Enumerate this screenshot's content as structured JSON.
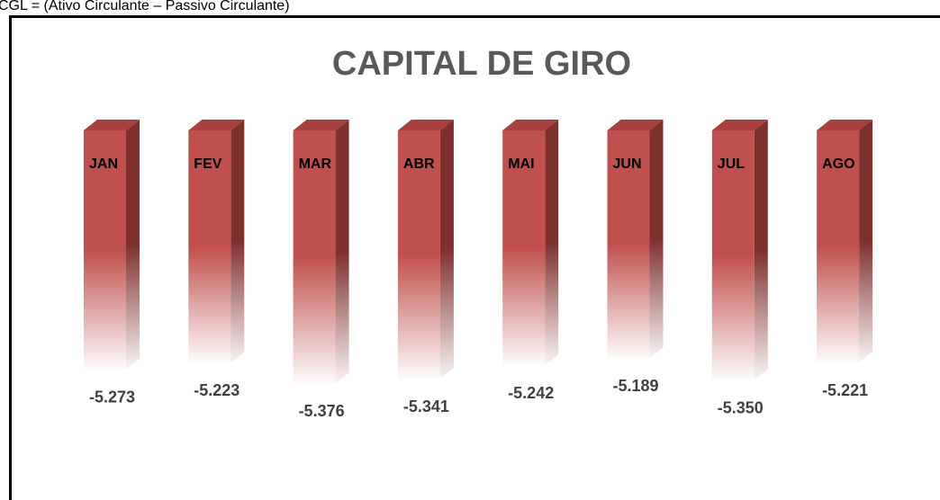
{
  "chart_data": {
    "type": "bar",
    "annotation": "CGL = (Ativo Circulante – Passivo Circulante)",
    "title": "CAPITAL DE GIRO",
    "categories": [
      "JAN",
      "FEV",
      "MAR",
      "ABR",
      "MAI",
      "JUN",
      "JUL",
      "AGO"
    ],
    "values": [
      -5273,
      -5223,
      -5376,
      -5341,
      -5242,
      -5189,
      -5350,
      -5221
    ],
    "value_labels": [
      "-5.273",
      "-5.223",
      "-5.376",
      "-5.341",
      "-5.242",
      "-5.189",
      "-5.350",
      "-5.221"
    ],
    "color": "#c0504d",
    "ylim": [
      -5500,
      -3500
    ]
  }
}
